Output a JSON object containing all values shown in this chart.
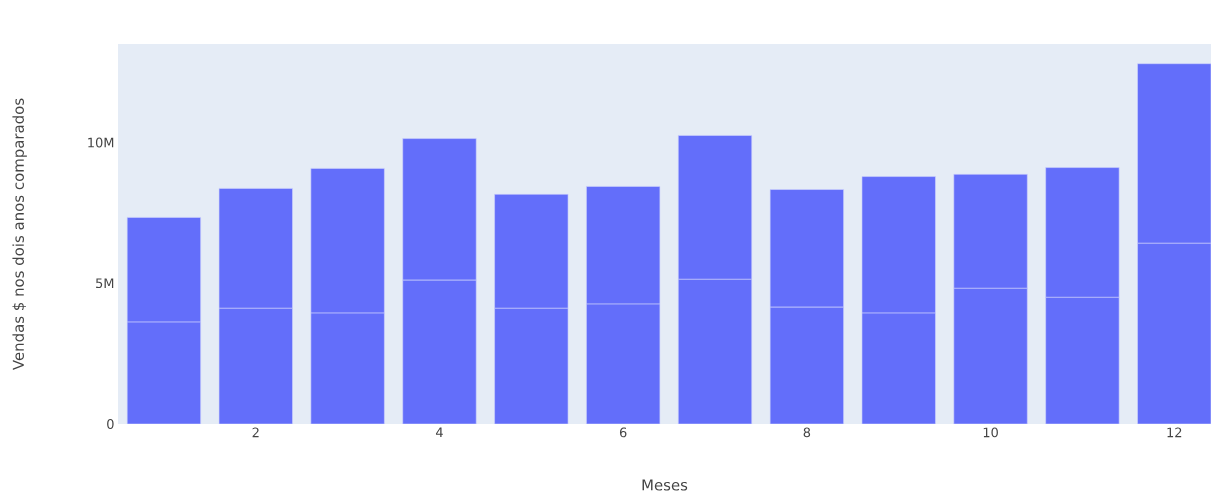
{
  "chart_data": {
    "type": "bar",
    "stacked": true,
    "xlabel": "Meses",
    "ylabel": "Vendas $ nos dois anos comparados",
    "x": [
      1,
      2,
      3,
      4,
      5,
      6,
      7,
      8,
      9,
      10,
      11,
      12
    ],
    "series": [
      {
        "color": "#636efa",
        "values": [
          3620000,
          4110000,
          3940000,
          5110000,
          4110000,
          4260000,
          5140000,
          4150000,
          3940000,
          4820000,
          4500000,
          6420000
        ]
      },
      {
        "color": "#636efa",
        "values": [
          3720000,
          4260000,
          5140000,
          5030000,
          4050000,
          4180000,
          5110000,
          4180000,
          4850000,
          4050000,
          4610000,
          6380000
        ]
      }
    ],
    "xlim": [
      0.5,
      12.4
    ],
    "xticks": [
      2,
      4,
      6,
      8,
      10,
      12
    ],
    "ylim": [
      0,
      13500000
    ],
    "yticks": [
      0,
      {
        "value": 5000000,
        "label": "5M"
      },
      {
        "value": 10000000,
        "label": "10M"
      }
    ]
  }
}
